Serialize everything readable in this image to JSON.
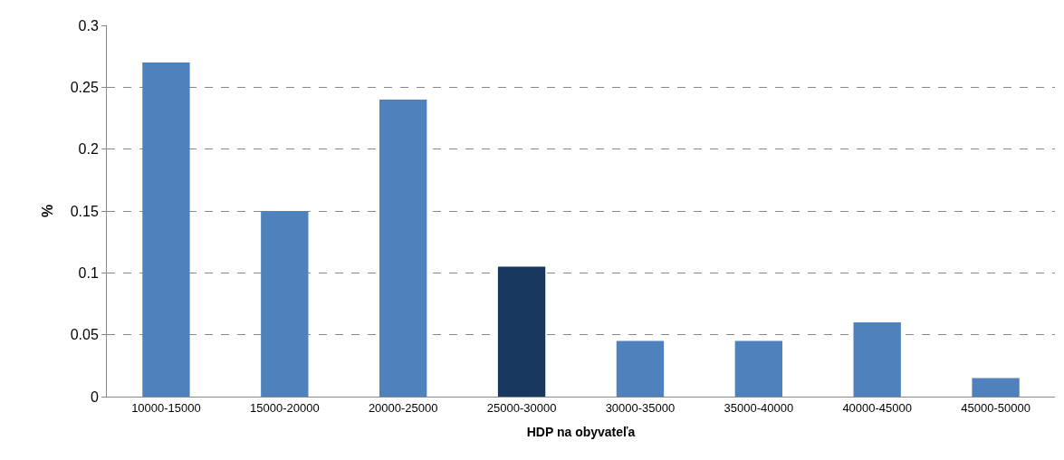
{
  "chart_data": {
    "type": "bar",
    "xlabel": "HDP na obyvateľa",
    "ylabel": "%",
    "categories": [
      "10000-15000",
      "15000-20000",
      "20000-25000",
      "25000-30000",
      "30000-35000",
      "35000-40000",
      "40000-45000",
      "45000-50000"
    ],
    "values": [
      0.27,
      0.15,
      0.24,
      0.105,
      0.045,
      0.045,
      0.06,
      0.015
    ],
    "colors": [
      "#4f81bd",
      "#4f81bd",
      "#4f81bd",
      "#17375e",
      "#4f81bd",
      "#4f81bd",
      "#4f81bd",
      "#4f81bd"
    ],
    "ylim": [
      0,
      0.3
    ],
    "yticks": [
      0,
      0.05,
      0.1,
      0.15,
      0.2,
      0.25,
      0.3
    ],
    "grid": "y"
  }
}
